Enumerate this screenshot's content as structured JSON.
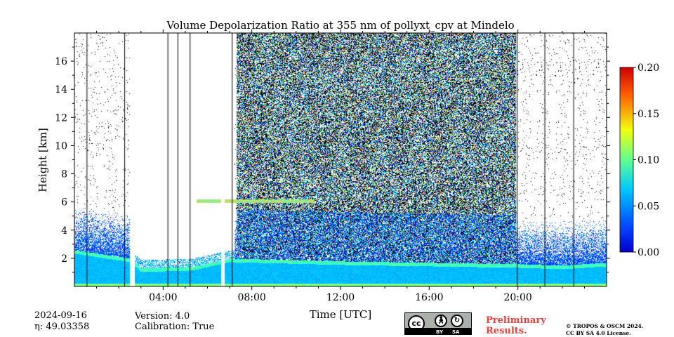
{
  "meta": {
    "date": "2024-09-16",
    "eta": "η: 49.03358",
    "version": "Version: 4.0",
    "calibration": "Calibration: True",
    "preliminary_line1": "Preliminary",
    "preliminary_line2": "Results.",
    "copyright_line1": "© TROPOS & OSCM 2024.",
    "copyright_line2": "CC BY SA 4.0 License.",
    "license_badge_labels": [
      "cc",
      "BY",
      "SA"
    ]
  },
  "chart_data": {
    "type": "heatmap",
    "title": "Volume Depolarization Ratio at 355 nm of pollyxt_cpv at Mindelo",
    "xlabel": "Time [UTC]",
    "ylabel": "Height [km]",
    "xlim": [
      0,
      24
    ],
    "ylim": [
      0,
      18
    ],
    "x_ticks": [
      {
        "value": 4,
        "label": "04:00"
      },
      {
        "value": 8,
        "label": "08:00"
      },
      {
        "value": 12,
        "label": "12:00"
      },
      {
        "value": 16,
        "label": "16:00"
      },
      {
        "value": 20,
        "label": "20:00"
      }
    ],
    "y_ticks": [
      {
        "value": 2,
        "label": "2"
      },
      {
        "value": 4,
        "label": "4"
      },
      {
        "value": 6,
        "label": "6"
      },
      {
        "value": 8,
        "label": "8"
      },
      {
        "value": 10,
        "label": "10"
      },
      {
        "value": 12,
        "label": "12"
      },
      {
        "value": 14,
        "label": "14"
      },
      {
        "value": 16,
        "label": "16"
      }
    ],
    "colorbar": {
      "min": 0.0,
      "max": 0.2,
      "colormap": "jet",
      "ticks": [
        {
          "value": 0.0,
          "label": "0.00"
        },
        {
          "value": 0.05,
          "label": "0.05"
        },
        {
          "value": 0.1,
          "label": "0.10"
        },
        {
          "value": 0.15,
          "label": "0.15"
        },
        {
          "value": 0.2,
          "label": "0.20"
        }
      ]
    },
    "noisy_daytime_period_utc": [
      7.3,
      19.9
    ],
    "no_data_gaps_utc": [
      [
        2.5,
        2.7
      ],
      [
        6.6,
        6.75
      ]
    ],
    "mostly_blank_periods_utc": [
      [
        2.7,
        5.3
      ],
      [
        5.3,
        7.2
      ]
    ],
    "boundary_layer_top_km": [
      [
        0.0,
        2.6
      ],
      [
        2.5,
        2.0
      ],
      [
        3.0,
        1.3
      ],
      [
        5.3,
        1.4
      ],
      [
        7.0,
        2.0
      ],
      [
        12.0,
        1.8
      ],
      [
        16.0,
        1.7
      ],
      [
        20.0,
        1.6
      ],
      [
        22.0,
        1.5
      ],
      [
        24.0,
        1.7
      ]
    ],
    "elevated_layer": {
      "time_range_utc": [
        5.5,
        10.8
      ],
      "height_km": 6.1
    },
    "surface_layer_km": 0.2,
    "colors": {
      "background": "#ffffff",
      "low": "#1050d8",
      "mid": "#1890e0",
      "aerosol": "#30c8a0",
      "layer_edge": "#d8d860"
    }
  }
}
